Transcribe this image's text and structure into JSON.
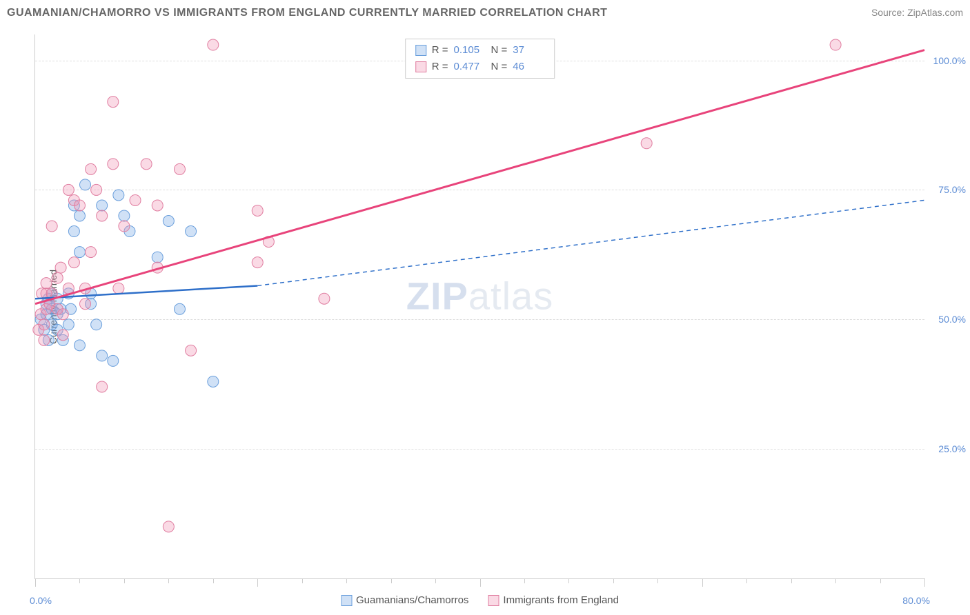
{
  "header": {
    "title": "GUAMANIAN/CHAMORRO VS IMMIGRANTS FROM ENGLAND CURRENTLY MARRIED CORRELATION CHART",
    "source_prefix": "Source: ",
    "source_name": "ZipAtlas.com"
  },
  "chart": {
    "type": "scatter-with-regression",
    "ylabel": "Currently Married",
    "xlim": [
      0,
      80
    ],
    "ylim": [
      0,
      105
    ],
    "xlabel_min": "0.0%",
    "xlabel_max": "80.0%",
    "xtick_major_step": 20,
    "xtick_minor_step": 4,
    "ygrid_values": [
      25,
      50,
      75,
      100
    ],
    "ygrid_labels": [
      "25.0%",
      "50.0%",
      "75.0%",
      "100.0%"
    ],
    "grid_color": "#dddddd",
    "axis_color": "#cccccc",
    "background_color": "#ffffff",
    "watermark_zip": "ZIP",
    "watermark_atlas": "atlas",
    "series": [
      {
        "key": "s1",
        "name": "Guamanians/Chamorros",
        "fill": "rgba(120,170,230,0.35)",
        "stroke": "#6a9fdc",
        "line_color": "#2e6fc9",
        "R": "0.105",
        "N": "37",
        "reg_solid": {
          "x1": 0,
          "y1": 54,
          "x2": 20,
          "y2": 56.5
        },
        "reg_dash": {
          "x1": 20,
          "y1": 56.5,
          "x2": 80,
          "y2": 73
        },
        "marker_r": 8,
        "line_width": 2.5,
        "points": [
          [
            0.5,
            50
          ],
          [
            0.8,
            48
          ],
          [
            1,
            53
          ],
          [
            1,
            51
          ],
          [
            1.2,
            54
          ],
          [
            1.2,
            46
          ],
          [
            1.5,
            55
          ],
          [
            1.5,
            52
          ],
          [
            1.5,
            49
          ],
          [
            2,
            48
          ],
          [
            2,
            51
          ],
          [
            2,
            54
          ],
          [
            2.3,
            52
          ],
          [
            2.5,
            46
          ],
          [
            3,
            49
          ],
          [
            3,
            55
          ],
          [
            3.2,
            52
          ],
          [
            3.5,
            67
          ],
          [
            3.5,
            72
          ],
          [
            4,
            63
          ],
          [
            4,
            45
          ],
          [
            4.5,
            76
          ],
          [
            5,
            53
          ],
          [
            5,
            55
          ],
          [
            5.5,
            49
          ],
          [
            6,
            43
          ],
          [
            6,
            72
          ],
          [
            7,
            42
          ],
          [
            7.5,
            74
          ],
          [
            8,
            70
          ],
          [
            8.5,
            67
          ],
          [
            4,
            70
          ],
          [
            11,
            62
          ],
          [
            12,
            69
          ],
          [
            14,
            67
          ],
          [
            13,
            52
          ],
          [
            16,
            38
          ]
        ]
      },
      {
        "key": "s2",
        "name": "Immigrants from England",
        "fill": "rgba(240,150,180,0.35)",
        "stroke": "#e07da0",
        "line_color": "#e8447b",
        "R": "0.477",
        "N": "46",
        "reg_solid": {
          "x1": 0,
          "y1": 53,
          "x2": 80,
          "y2": 102
        },
        "reg_dash": null,
        "marker_r": 8,
        "line_width": 3,
        "points": [
          [
            0.3,
            48
          ],
          [
            0.5,
            51
          ],
          [
            0.6,
            55
          ],
          [
            0.8,
            49
          ],
          [
            0.8,
            46
          ],
          [
            1,
            55
          ],
          [
            1,
            57
          ],
          [
            1,
            52
          ],
          [
            1.3,
            53
          ],
          [
            1.5,
            68
          ],
          [
            1.5,
            55
          ],
          [
            2,
            58
          ],
          [
            2,
            52
          ],
          [
            2.3,
            60
          ],
          [
            2.5,
            51
          ],
          [
            2.5,
            47
          ],
          [
            3,
            75
          ],
          [
            3,
            56
          ],
          [
            3.5,
            61
          ],
          [
            3.5,
            73
          ],
          [
            4,
            72
          ],
          [
            4.5,
            56
          ],
          [
            4.5,
            53
          ],
          [
            5,
            79
          ],
          [
            5,
            63
          ],
          [
            5.5,
            75
          ],
          [
            6,
            70
          ],
          [
            6,
            37
          ],
          [
            7,
            80
          ],
          [
            7,
            92
          ],
          [
            7.5,
            56
          ],
          [
            8,
            68
          ],
          [
            9,
            73
          ],
          [
            10,
            80
          ],
          [
            11,
            72
          ],
          [
            11,
            60
          ],
          [
            13,
            79
          ],
          [
            14,
            44
          ],
          [
            16,
            103
          ],
          [
            20,
            71
          ],
          [
            21,
            65
          ],
          [
            20,
            61
          ],
          [
            26,
            54
          ],
          [
            12,
            10
          ],
          [
            55,
            84
          ],
          [
            72,
            103
          ]
        ]
      }
    ],
    "stat_labels": {
      "R": "R  =",
      "N": "N  ="
    },
    "bottom_legend_swatch_size": 16,
    "tick_label_color": "#5b8bd4",
    "title_fontsize": 16,
    "label_fontsize": 14
  }
}
